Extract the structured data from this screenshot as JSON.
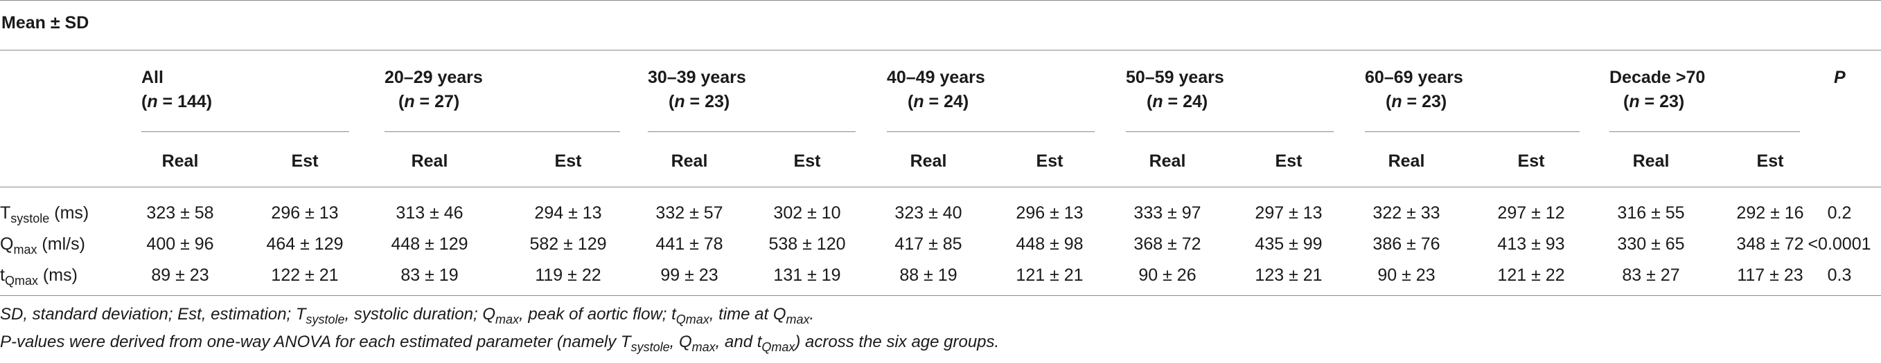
{
  "header": {
    "mean_sd": "Mean ± SD"
  },
  "groups": [
    {
      "label": "All",
      "n_prefix": "(",
      "n_var": "n",
      "n_value": " = 144)"
    },
    {
      "label": "20–29 years",
      "n_prefix": "(",
      "n_var": "n",
      "n_value": " = 27)"
    },
    {
      "label": "30–39 years",
      "n_prefix": "(",
      "n_var": "n",
      "n_value": " = 23)"
    },
    {
      "label": "40–49 years",
      "n_prefix": "(",
      "n_var": "n",
      "n_value": " = 24)"
    },
    {
      "label": "50–59 years",
      "n_prefix": "(",
      "n_var": "n",
      "n_value": " = 24)"
    },
    {
      "label": "60–69 years",
      "n_prefix": "(",
      "n_var": "n",
      "n_value": " = 23)"
    },
    {
      "label": "Decade >70",
      "n_prefix": "(",
      "n_var": "n",
      "n_value": " = 23)"
    }
  ],
  "p_header": "P",
  "sub_headers": {
    "real": "Real",
    "est": "Est"
  },
  "rows": [
    {
      "label_main": "T",
      "label_sub": "systole",
      "label_unit": " (ms)",
      "values": [
        "323 ± 58",
        "296 ± 13",
        "313 ± 46",
        "294 ± 13",
        "332 ± 57",
        "302 ± 10",
        "323 ± 40",
        "296 ± 13",
        "333 ± 97",
        "297 ± 13",
        "322 ± 33",
        "297 ± 12",
        "316 ± 55",
        "292 ± 16"
      ],
      "p": "0.2"
    },
    {
      "label_main": "Q",
      "label_sub": "max",
      "label_unit": " (ml/s)",
      "values": [
        "400 ± 96",
        "464 ± 129",
        "448 ± 129",
        "582 ± 129",
        "441 ± 78",
        "538 ± 120",
        "417 ± 85",
        "448 ± 98",
        "368 ± 72",
        "435 ± 99",
        "386 ± 76",
        "413 ± 93",
        "330 ± 65",
        "348 ± 72"
      ],
      "p": "<0.0001"
    },
    {
      "label_main": "t",
      "label_sub": "Qmax",
      "label_unit": " (ms)",
      "values": [
        "89 ± 23",
        "122 ± 21",
        "83 ± 19",
        "119 ± 22",
        "99 ± 23",
        "131 ± 19",
        "88 ± 19",
        "121 ± 21",
        "90 ± 26",
        "123 ± 21",
        "90 ± 23",
        "121 ± 22",
        "83 ± 27",
        "117 ± 23"
      ],
      "p": "0.3"
    }
  ],
  "footnotes": {
    "line1": {
      "a": "SD, standard deviation; Est, estimation; T",
      "a_sub": "systole",
      "b": ", systolic duration; Q",
      "b_sub": "max",
      "c": ", peak of aortic flow; t",
      "c_sub": "Qmax",
      "d": ", time at Q",
      "d_sub": "max",
      "e": "."
    },
    "line2": {
      "a": "P-values were derived from one-way ANOVA for each estimated parameter (namely T",
      "a_sub": "systole",
      "b": ", Q",
      "b_sub": "max",
      "c": ", and t",
      "c_sub": "Qmax",
      "d": ") across the six age groups."
    }
  }
}
